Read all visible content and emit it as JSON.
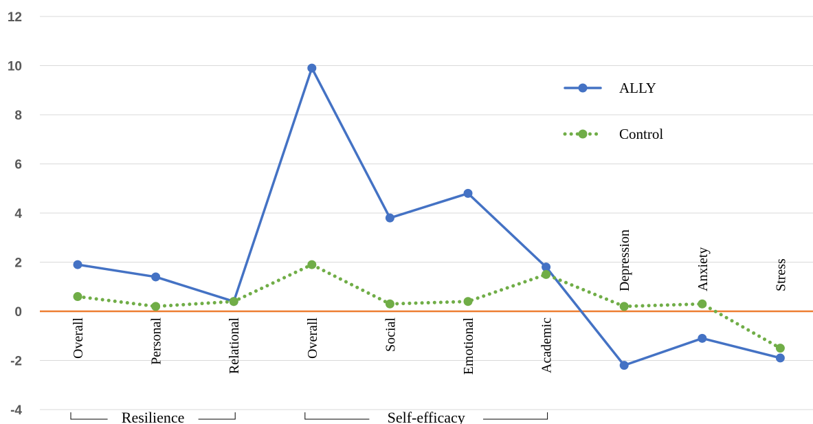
{
  "chart_data": {
    "type": "line",
    "categories": [
      "Overall",
      "Personal",
      "Relational",
      "Overall",
      "Social",
      "Emotional",
      "Academic",
      "Depression",
      "Anxiety",
      "Stress"
    ],
    "series": [
      {
        "name": "ALLY",
        "values": [
          1.9,
          1.4,
          0.4,
          9.9,
          3.8,
          4.8,
          1.8,
          -2.2,
          -1.1,
          -1.9
        ],
        "color": "#4472C4",
        "style": "solid"
      },
      {
        "name": "Control",
        "values": [
          0.6,
          0.2,
          0.4,
          1.9,
          0.3,
          0.4,
          1.5,
          0.2,
          0.3,
          -1.5
        ],
        "color": "#70AD47",
        "style": "dotted"
      }
    ],
    "yticks": [
      -4,
      -2,
      0,
      2,
      4,
      6,
      8,
      10,
      12
    ],
    "ylim": [
      -4,
      12
    ],
    "grid": "horizontal",
    "zero_line_color": "#ED7D31",
    "legend_placement": "top-right",
    "groups": [
      {
        "label": "Resilience",
        "from": 0,
        "to": 2
      },
      {
        "label": "Self-efficacy",
        "from": 3,
        "to": 6
      }
    ],
    "title": "",
    "xlabel": "",
    "ylabel": ""
  }
}
